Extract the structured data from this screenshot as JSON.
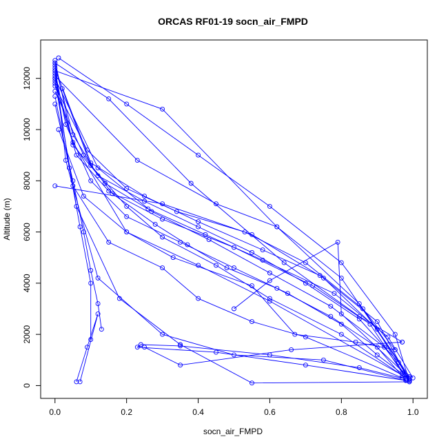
{
  "chart_data": {
    "type": "line",
    "title": "ORCAS RF01-19 socn_air_FMPD",
    "xlabel": "socn_air_FMPD",
    "ylabel": "Altitude (m)",
    "xlim": [
      -0.04,
      1.04
    ],
    "ylim": [
      -500,
      13500
    ],
    "x_ticks": [
      0.0,
      0.2,
      0.4,
      0.6,
      0.8,
      1.0
    ],
    "x_tick_labels": [
      "0.0",
      "0.2",
      "0.4",
      "0.6",
      "0.8",
      "1.0"
    ],
    "y_ticks": [
      0,
      2000,
      4000,
      6000,
      8000,
      10000,
      12000
    ],
    "y_tick_labels": [
      "0",
      "2000",
      "4000",
      "6000",
      "8000",
      "10000",
      "12000"
    ],
    "grid": false,
    "legend": "none",
    "series_color": "#0000ff",
    "series": [
      {
        "x": [
          0.0,
          0.05,
          0.12,
          0.25,
          0.4,
          0.55,
          0.7,
          0.85,
          0.96,
          0.99
        ],
        "y": [
          12500,
          9800,
          8200,
          7200,
          6200,
          5200,
          4000,
          2600,
          900,
          200
        ]
      },
      {
        "x": [
          0.99,
          0.9,
          0.8,
          0.65,
          0.5,
          0.35,
          0.2,
          0.1,
          0.03,
          0.0
        ],
        "y": [
          250,
          1200,
          2400,
          3600,
          4600,
          5600,
          6600,
          8000,
          10200,
          12300
        ]
      },
      {
        "x": [
          0.0,
          0.3,
          0.55,
          0.75,
          0.9,
          0.98
        ],
        "y": [
          7800,
          7100,
          5900,
          4200,
          2200,
          300
        ]
      },
      {
        "x": [
          0.98,
          0.7,
          0.45,
          0.23,
          0.24,
          0.35,
          0.6,
          0.85,
          0.98
        ],
        "y": [
          200,
          800,
          1300,
          1500,
          1600,
          1550,
          1200,
          700,
          250
        ]
      },
      {
        "x": [
          0.0,
          0.06,
          0.15,
          0.3,
          0.5,
          0.72,
          0.88,
          0.97
        ],
        "y": [
          11800,
          9000,
          7600,
          6500,
          5400,
          3900,
          2400,
          500
        ]
      },
      {
        "x": [
          0.97,
          0.8,
          0.6,
          0.45,
          0.3,
          0.2,
          0.1,
          0.02
        ],
        "y": [
          400,
          2000,
          3400,
          4700,
          5800,
          7000,
          8600,
          11600
        ]
      },
      {
        "x": [
          0.01,
          0.2,
          0.4,
          0.6,
          0.8,
          0.95,
          0.99
        ],
        "y": [
          12800,
          11000,
          9000,
          7000,
          4800,
          2000,
          150
        ]
      },
      {
        "x": [
          0.0,
          0.23,
          0.45,
          0.62,
          0.8,
          0.99
        ],
        "y": [
          12100,
          8800,
          7100,
          6200,
          4200,
          300
        ]
      },
      {
        "x": [
          0.99,
          0.6,
          0.4,
          0.2,
          0.05,
          0.0
        ],
        "y": [
          250,
          3300,
          4700,
          6000,
          9500,
          12000
        ]
      },
      {
        "x": [
          0.0,
          0.1,
          0.25,
          0.4,
          0.58,
          0.74,
          0.9,
          0.99
        ],
        "y": [
          12400,
          8700,
          7400,
          6400,
          5300,
          4300,
          2500,
          200
        ]
      },
      {
        "x": [
          0.97,
          0.7,
          0.55,
          0.4,
          0.3,
          0.15,
          0.05,
          0.0
        ],
        "y": [
          300,
          1900,
          2500,
          3400,
          4600,
          5600,
          7800,
          11300
        ]
      },
      {
        "x": [
          0.0,
          0.05,
          0.08,
          0.1,
          0.12,
          0.13
        ],
        "y": [
          11000,
          8000,
          6000,
          4500,
          3200,
          2200
        ]
      },
      {
        "x": [
          0.06,
          0.09,
          0.12,
          0.07
        ],
        "y": [
          150,
          1500,
          2800,
          150
        ]
      },
      {
        "x": [
          0.0,
          0.04,
          0.07,
          0.1,
          0.1
        ],
        "y": [
          12200,
          8500,
          6200,
          4000,
          1800
        ]
      },
      {
        "x": [
          0.0,
          0.3,
          0.62,
          0.85,
          0.99
        ],
        "y": [
          12300,
          10800,
          6200,
          3200,
          350
        ]
      },
      {
        "x": [
          0.99,
          0.8,
          0.79,
          0.6,
          0.5
        ],
        "y": [
          300,
          2800,
          5600,
          4100,
          3000
        ]
      },
      {
        "x": [
          0.0,
          0.12,
          0.27,
          0.43,
          0.6,
          0.77,
          0.92,
          0.99
        ],
        "y": [
          12000,
          8500,
          6800,
          5700,
          4400,
          3100,
          1500,
          200
        ]
      },
      {
        "x": [
          0.98,
          0.75,
          0.5,
          0.3,
          0.12,
          0.03,
          0.0
        ],
        "y": [
          200,
          1000,
          1200,
          2000,
          4200,
          8800,
          12600
        ]
      },
      {
        "x": [
          0.0,
          0.15,
          0.38,
          0.64,
          0.85,
          0.97
        ],
        "y": [
          12600,
          11200,
          7900,
          4800,
          2700,
          1700
        ]
      },
      {
        "x": [
          0.97,
          0.66,
          0.35,
          0.25
        ],
        "y": [
          1700,
          1400,
          800,
          1500
        ]
      },
      {
        "x": [
          0.0,
          0.09,
          0.2,
          0.34,
          0.53,
          0.7,
          0.86,
          0.95
        ],
        "y": [
          11700,
          9200,
          7700,
          6800,
          6000,
          4800,
          3000,
          1400
        ]
      },
      {
        "x": [
          0.95,
          0.84,
          0.67,
          0.55,
          0.33,
          0.2,
          0.08,
          0.01
        ],
        "y": [
          1400,
          1700,
          2000,
          3900,
          5000,
          6000,
          7400,
          10000
        ]
      },
      {
        "x": [
          0.0,
          0.05,
          0.14,
          0.26,
          0.42,
          0.58,
          0.78,
          0.93,
          1.0
        ],
        "y": [
          12700,
          9400,
          7900,
          6900,
          5900,
          4900,
          3600,
          1900,
          300
        ]
      },
      {
        "x": [
          0.99,
          0.55,
          0.35,
          0.18,
          0.06,
          0.0
        ],
        "y": [
          150,
          100,
          1600,
          3400,
          7000,
          11900
        ]
      },
      {
        "x": [
          0.0,
          0.08,
          0.16,
          0.28,
          0.37,
          0.48,
          0.62,
          0.77,
          0.9,
          0.98
        ],
        "y": [
          11500,
          9000,
          7500,
          6300,
          5500,
          4600,
          3800,
          2700,
          1500,
          200
        ]
      }
    ]
  }
}
